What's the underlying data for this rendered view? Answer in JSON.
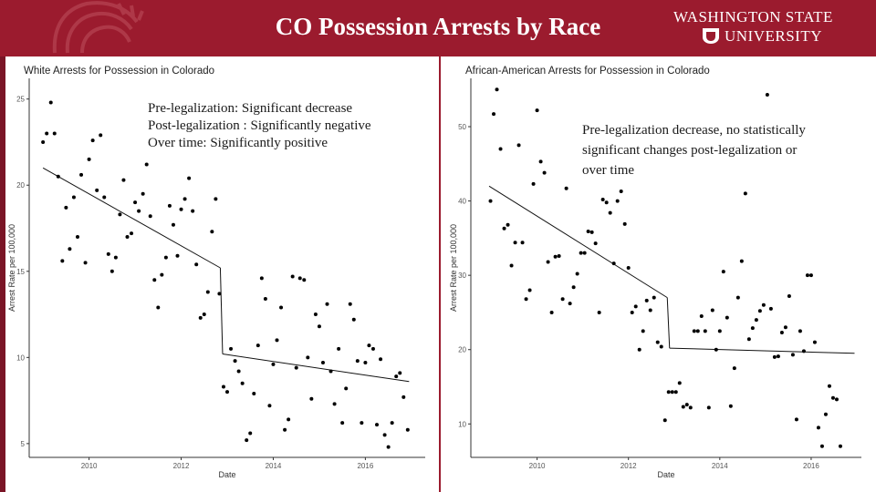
{
  "slide": {
    "title": "CO Possession Arrests by Race",
    "university_line1": "WASHINGTON STATE",
    "university_line2": "UNIVERSITY",
    "colors": {
      "header": "#9b1b2e",
      "text": "#1a1a1a",
      "background": "#ffffff"
    },
    "left_note": [
      "Pre-legalization: Significant decrease",
      "Post-legalization : Significantly negative",
      "Over time: Significantly positive"
    ],
    "right_note": [
      "Pre-legalization decrease, no statistically",
      "significant changes post-legalization or",
      "over time"
    ]
  },
  "chart_data": [
    {
      "type": "scatter",
      "title": "White Arrests for Possession in Colorado",
      "xlabel": "Date",
      "ylabel": "Arrest Rate per 100,000",
      "xlim": [
        2008.7,
        2017.3
      ],
      "ylim": [
        4.2,
        26.2
      ],
      "xticks": [
        2010,
        2012,
        2014,
        2016
      ],
      "yticks": [
        5,
        10,
        15,
        20,
        25
      ],
      "breakpoint": 2012.85,
      "trend": [
        {
          "segment": "pre",
          "x": [
            2009.0,
            2012.85
          ],
          "y": [
            21.0,
            15.2
          ]
        },
        {
          "segment": "post",
          "x": [
            2012.9,
            2016.95
          ],
          "y": [
            10.2,
            8.6
          ]
        }
      ],
      "points": [
        [
          2009.0,
          22.5
        ],
        [
          2009.08,
          23.0
        ],
        [
          2009.17,
          24.8
        ],
        [
          2009.25,
          23.0
        ],
        [
          2009.33,
          20.5
        ],
        [
          2009.42,
          15.6
        ],
        [
          2009.5,
          18.7
        ],
        [
          2009.58,
          16.3
        ],
        [
          2009.67,
          19.3
        ],
        [
          2009.75,
          17.0
        ],
        [
          2009.83,
          20.6
        ],
        [
          2009.92,
          15.5
        ],
        [
          2010.0,
          21.5
        ],
        [
          2010.08,
          22.6
        ],
        [
          2010.17,
          19.7
        ],
        [
          2010.25,
          22.9
        ],
        [
          2010.33,
          19.3
        ],
        [
          2010.42,
          16.0
        ],
        [
          2010.5,
          15.0
        ],
        [
          2010.58,
          15.8
        ],
        [
          2010.67,
          18.3
        ],
        [
          2010.75,
          20.3
        ],
        [
          2010.83,
          17.0
        ],
        [
          2010.92,
          17.2
        ],
        [
          2011.0,
          19.0
        ],
        [
          2011.08,
          18.5
        ],
        [
          2011.17,
          19.5
        ],
        [
          2011.25,
          21.2
        ],
        [
          2011.33,
          18.2
        ],
        [
          2011.42,
          14.5
        ],
        [
          2011.5,
          12.9
        ],
        [
          2011.58,
          14.8
        ],
        [
          2011.67,
          15.8
        ],
        [
          2011.75,
          18.8
        ],
        [
          2011.83,
          17.7
        ],
        [
          2011.92,
          15.9
        ],
        [
          2012.0,
          18.6
        ],
        [
          2012.08,
          19.2
        ],
        [
          2012.17,
          20.4
        ],
        [
          2012.25,
          18.5
        ],
        [
          2012.33,
          15.4
        ],
        [
          2012.42,
          12.3
        ],
        [
          2012.5,
          12.5
        ],
        [
          2012.58,
          13.8
        ],
        [
          2012.67,
          17.3
        ],
        [
          2012.75,
          19.2
        ],
        [
          2012.83,
          13.7
        ],
        [
          2012.92,
          8.3
        ],
        [
          2013.0,
          8.0
        ],
        [
          2013.08,
          10.5
        ],
        [
          2013.17,
          9.8
        ],
        [
          2013.25,
          9.2
        ],
        [
          2013.33,
          8.5
        ],
        [
          2013.42,
          5.2
        ],
        [
          2013.5,
          5.6
        ],
        [
          2013.58,
          7.9
        ],
        [
          2013.67,
          10.7
        ],
        [
          2013.75,
          14.6
        ],
        [
          2013.83,
          13.4
        ],
        [
          2013.92,
          7.2
        ],
        [
          2014.0,
          9.6
        ],
        [
          2014.08,
          11.0
        ],
        [
          2014.17,
          12.9
        ],
        [
          2014.25,
          5.8
        ],
        [
          2014.33,
          6.4
        ],
        [
          2014.42,
          14.7
        ],
        [
          2014.5,
          9.4
        ],
        [
          2014.58,
          14.6
        ],
        [
          2014.67,
          14.5
        ],
        [
          2014.75,
          10.0
        ],
        [
          2014.83,
          7.6
        ],
        [
          2014.92,
          12.5
        ],
        [
          2015.0,
          11.8
        ],
        [
          2015.08,
          9.7
        ],
        [
          2015.17,
          13.1
        ],
        [
          2015.25,
          9.2
        ],
        [
          2015.33,
          7.3
        ],
        [
          2015.42,
          10.5
        ],
        [
          2015.5,
          6.2
        ],
        [
          2015.58,
          8.2
        ],
        [
          2015.67,
          13.1
        ],
        [
          2015.75,
          12.2
        ],
        [
          2015.83,
          9.8
        ],
        [
          2015.92,
          6.2
        ],
        [
          2016.0,
          9.7
        ],
        [
          2016.08,
          10.7
        ],
        [
          2016.17,
          10.5
        ],
        [
          2016.25,
          6.1
        ],
        [
          2016.33,
          9.9
        ],
        [
          2016.42,
          5.5
        ],
        [
          2016.5,
          4.8
        ],
        [
          2016.58,
          6.2
        ],
        [
          2016.67,
          8.9
        ],
        [
          2016.75,
          9.1
        ],
        [
          2016.83,
          7.7
        ],
        [
          2016.92,
          5.8
        ]
      ]
    },
    {
      "type": "scatter",
      "title": "African-American Arrests for Possession in Colorado",
      "xlabel": "Date",
      "ylabel": "Arrest Rate per 100,000",
      "xlim": [
        2008.55,
        2017.1
      ],
      "ylim": [
        5.5,
        56.5
      ],
      "xticks": [
        2010,
        2012,
        2014,
        2016
      ],
      "yticks": [
        10,
        20,
        30,
        40,
        50
      ],
      "breakpoint": 2012.85,
      "trend": [
        {
          "segment": "pre",
          "x": [
            2008.95,
            2012.85
          ],
          "y": [
            42.0,
            27.0
          ]
        },
        {
          "segment": "post",
          "x": [
            2012.9,
            2016.95
          ],
          "y": [
            20.2,
            19.5
          ]
        }
      ],
      "points": [
        [
          2008.98,
          40.0
        ],
        [
          2009.05,
          51.7
        ],
        [
          2009.12,
          55.0
        ],
        [
          2009.2,
          47.0
        ],
        [
          2009.28,
          36.3
        ],
        [
          2009.36,
          36.8
        ],
        [
          2009.44,
          31.3
        ],
        [
          2009.52,
          34.4
        ],
        [
          2009.6,
          47.5
        ],
        [
          2009.68,
          34.4
        ],
        [
          2009.76,
          26.8
        ],
        [
          2009.84,
          28.0
        ],
        [
          2009.92,
          42.3
        ],
        [
          2010.0,
          52.2
        ],
        [
          2010.08,
          45.3
        ],
        [
          2010.16,
          43.8
        ],
        [
          2010.24,
          31.8
        ],
        [
          2010.32,
          25.0
        ],
        [
          2010.4,
          32.5
        ],
        [
          2010.48,
          32.6
        ],
        [
          2010.56,
          26.8
        ],
        [
          2010.64,
          41.7
        ],
        [
          2010.72,
          26.2
        ],
        [
          2010.8,
          28.4
        ],
        [
          2010.88,
          30.2
        ],
        [
          2010.96,
          33.0
        ],
        [
          2011.04,
          33.0
        ],
        [
          2011.12,
          35.9
        ],
        [
          2011.2,
          35.8
        ],
        [
          2011.28,
          34.3
        ],
        [
          2011.36,
          25.0
        ],
        [
          2011.44,
          40.2
        ],
        [
          2011.52,
          39.8
        ],
        [
          2011.6,
          38.4
        ],
        [
          2011.68,
          31.6
        ],
        [
          2011.76,
          40.0
        ],
        [
          2011.84,
          41.3
        ],
        [
          2011.92,
          36.9
        ],
        [
          2012.0,
          31.0
        ],
        [
          2012.08,
          25.0
        ],
        [
          2012.16,
          25.8
        ],
        [
          2012.24,
          20.0
        ],
        [
          2012.32,
          22.5
        ],
        [
          2012.4,
          26.6
        ],
        [
          2012.48,
          25.3
        ],
        [
          2012.56,
          27.0
        ],
        [
          2012.64,
          21.0
        ],
        [
          2012.72,
          20.4
        ],
        [
          2012.8,
          10.5
        ],
        [
          2012.88,
          14.3
        ],
        [
          2012.96,
          14.3
        ],
        [
          2013.04,
          14.3
        ],
        [
          2013.12,
          15.5
        ],
        [
          2013.2,
          12.3
        ],
        [
          2013.28,
          12.6
        ],
        [
          2013.36,
          12.2
        ],
        [
          2013.44,
          22.5
        ],
        [
          2013.52,
          22.5
        ],
        [
          2013.6,
          24.5
        ],
        [
          2013.68,
          22.5
        ],
        [
          2013.76,
          12.2
        ],
        [
          2013.84,
          25.3
        ],
        [
          2013.92,
          20.0
        ],
        [
          2014.0,
          22.5
        ],
        [
          2014.08,
          30.5
        ],
        [
          2014.16,
          24.3
        ],
        [
          2014.24,
          12.4
        ],
        [
          2014.32,
          17.5
        ],
        [
          2014.4,
          27.0
        ],
        [
          2014.48,
          31.9
        ],
        [
          2014.56,
          41.0
        ],
        [
          2014.64,
          21.4
        ],
        [
          2014.72,
          22.9
        ],
        [
          2014.8,
          24.0
        ],
        [
          2014.88,
          25.2
        ],
        [
          2014.96,
          26.0
        ],
        [
          2015.04,
          54.3
        ],
        [
          2015.12,
          25.5
        ],
        [
          2015.2,
          19.0
        ],
        [
          2015.28,
          19.1
        ],
        [
          2015.36,
          22.3
        ],
        [
          2015.44,
          23.0
        ],
        [
          2015.52,
          27.2
        ],
        [
          2015.6,
          19.3
        ],
        [
          2015.68,
          10.6
        ],
        [
          2015.76,
          22.5
        ],
        [
          2015.84,
          19.8
        ],
        [
          2015.92,
          30.0
        ],
        [
          2016.0,
          30.0
        ],
        [
          2016.08,
          21.0
        ],
        [
          2016.16,
          9.5
        ],
        [
          2016.24,
          7.0
        ],
        [
          2016.32,
          11.3
        ],
        [
          2016.4,
          15.1
        ],
        [
          2016.48,
          13.5
        ],
        [
          2016.56,
          13.3
        ],
        [
          2016.64,
          7.0
        ]
      ]
    }
  ]
}
